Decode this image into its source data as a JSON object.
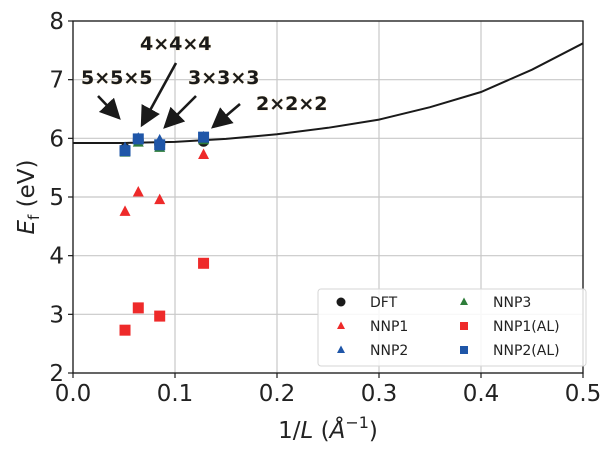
{
  "chart_data": {
    "type": "scatter",
    "title": "",
    "xlabel_main": "1/",
    "xlabel_var": "L",
    "xlabel_unit_open": " (",
    "xlabel_unit": "Å",
    "xlabel_sup": "−1",
    "xlabel_close": ")",
    "ylabel_var": "E",
    "ylabel_sub": "f",
    "ylabel_unit": " (eV)",
    "xlim": [
      0.0,
      0.5
    ],
    "ylim": [
      2,
      8
    ],
    "xticks": [
      "0.0",
      "0.1",
      "0.2",
      "0.3",
      "0.4",
      "0.5"
    ],
    "xtick_values": [
      0.0,
      0.1,
      0.2,
      0.3,
      0.4,
      0.5
    ],
    "yticks": [
      "2",
      "3",
      "4",
      "5",
      "6",
      "7",
      "8"
    ],
    "ytick_values": [
      2,
      3,
      4,
      5,
      6,
      7,
      8
    ],
    "grid": true,
    "x": [
      0.051,
      0.064,
      0.085,
      0.128
    ],
    "series": [
      {
        "name": "DFT",
        "marker": "circle",
        "color": "#1a1a1a",
        "values": [
          5.82,
          5.97,
          5.9,
          5.95
        ]
      },
      {
        "name": "NNP1",
        "marker": "triangle",
        "color": "#ee2a2a",
        "values": [
          4.75,
          5.08,
          4.95,
          5.72
        ]
      },
      {
        "name": "NNP2",
        "marker": "triangle",
        "color": "#1f56a8",
        "values": [
          5.84,
          6.0,
          5.97,
          6.02
        ]
      },
      {
        "name": "NNP3",
        "marker": "triangle",
        "color": "#2e7d3a",
        "values": [
          5.76,
          5.93,
          5.84,
          5.97
        ]
      },
      {
        "name": "NNP1(AL)",
        "marker": "square",
        "color": "#ee2a2a",
        "values": [
          2.73,
          3.11,
          2.97,
          3.87
        ]
      },
      {
        "name": "NNP2(AL)",
        "marker": "square",
        "color": "#1f56a8",
        "values": [
          5.79,
          5.99,
          5.89,
          6.02
        ]
      }
    ],
    "fit_curve": {
      "color": "#1a1a1a",
      "x": [
        0.0,
        0.05,
        0.1,
        0.15,
        0.2,
        0.25,
        0.3,
        0.35,
        0.4,
        0.45,
        0.5
      ],
      "y": [
        5.92,
        5.92,
        5.94,
        5.99,
        6.07,
        6.18,
        6.32,
        6.53,
        6.79,
        7.17,
        7.62
      ]
    },
    "annotations": [
      {
        "text": "5×5×5",
        "x": 0.051,
        "y": 5.85
      },
      {
        "text": "4×4×4",
        "x": 0.064,
        "y": 6.02
      },
      {
        "text": "3×3×3",
        "x": 0.085,
        "y": 5.98
      },
      {
        "text": "2×2×2",
        "x": 0.128,
        "y": 6.05
      }
    ],
    "legend": {
      "placement": "lower-right",
      "columns": 2,
      "order": [
        "DFT",
        "NNP3",
        "NNP1",
        "NNP1(AL)",
        "NNP2",
        "NNP2(AL)"
      ]
    }
  }
}
